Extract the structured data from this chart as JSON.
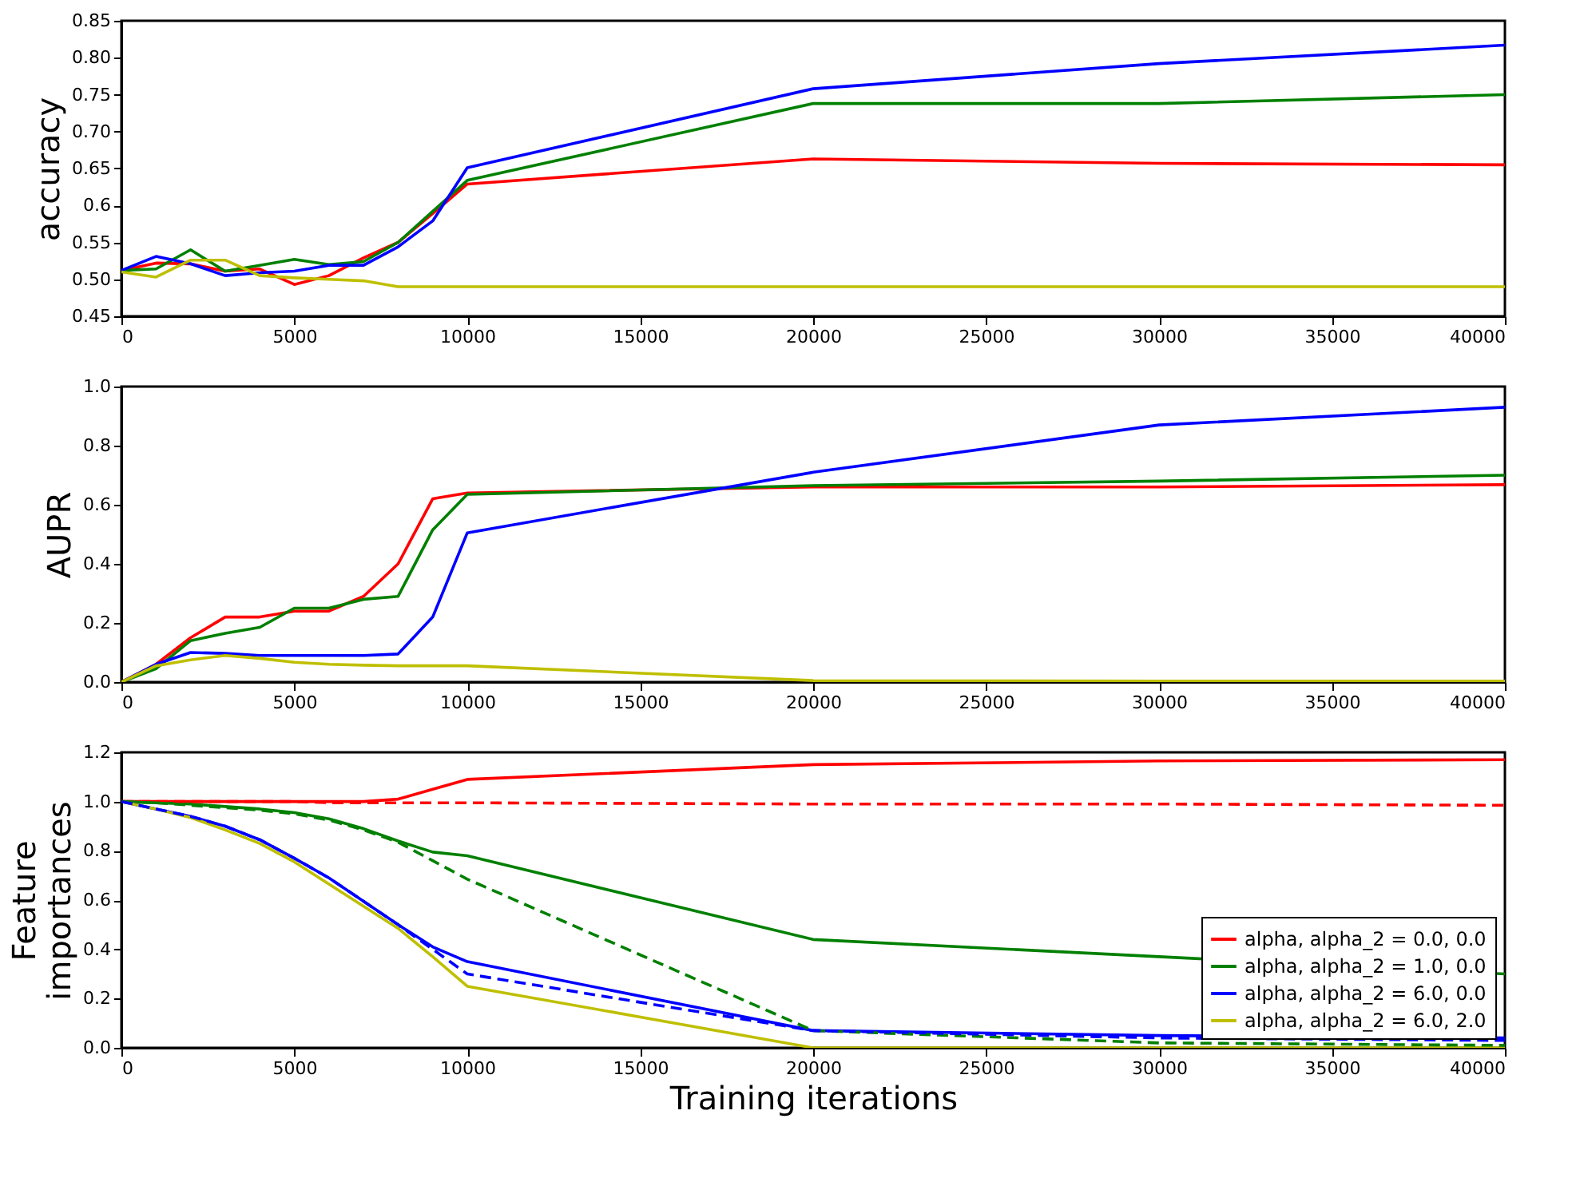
{
  "chart_data": [
    {
      "type": "line",
      "ylabel": "accuracy",
      "grid": false,
      "legend": false,
      "x": [
        0,
        1000,
        2000,
        3000,
        4000,
        5000,
        6000,
        7000,
        8000,
        9000,
        10000,
        20000,
        30000,
        40000
      ],
      "xlim": [
        0,
        40000
      ],
      "xticks": [
        0,
        5000,
        10000,
        15000,
        20000,
        25000,
        30000,
        35000,
        40000
      ],
      "ylim": [
        0.45,
        0.85
      ],
      "yticks": [
        0.45,
        {
          "value": 0.5,
          "label": "0.50"
        },
        0.55,
        0.6,
        0.65,
        {
          "value": 0.7,
          "label": "0.70"
        },
        0.75,
        {
          "value": 0.8,
          "label": "0.80"
        },
        0.85
      ],
      "series": [
        {
          "color": "#ff0000",
          "values": [
            0.512,
            0.522,
            0.521,
            0.511,
            0.514,
            0.493,
            0.505,
            0.529,
            0.55,
            0.589,
            0.629,
            0.663,
            0.657,
            0.655
          ]
        },
        {
          "color": "#008000",
          "values": [
            0.512,
            0.514,
            0.54,
            0.511,
            0.519,
            0.527,
            0.52,
            0.524,
            0.55,
            0.592,
            0.634,
            0.738,
            0.738,
            0.75
          ]
        },
        {
          "color": "#0000ff",
          "values": [
            0.512,
            0.531,
            0.521,
            0.505,
            0.509,
            0.511,
            0.519,
            0.519,
            0.544,
            0.579,
            0.651,
            0.758,
            0.792,
            0.817
          ]
        },
        {
          "color": "#bfbf00",
          "values": [
            0.51,
            0.503,
            0.526,
            0.526,
            0.505,
            0.502,
            0.5,
            0.498,
            0.49,
            0.49,
            0.49,
            0.49,
            0.49,
            0.49
          ]
        }
      ]
    },
    {
      "type": "line",
      "ylabel": "AUPR",
      "grid": false,
      "legend": false,
      "x": [
        0,
        1000,
        2000,
        3000,
        4000,
        5000,
        6000,
        7000,
        8000,
        9000,
        10000,
        20000,
        30000,
        40000
      ],
      "xlim": [
        0,
        40000
      ],
      "xticks": [
        0,
        5000,
        10000,
        15000,
        20000,
        25000,
        30000,
        35000,
        40000
      ],
      "ylim": [
        0.0,
        1.0
      ],
      "yticks": [
        {
          "value": 0,
          "label": "0.0"
        },
        0.2,
        0.4,
        0.6,
        0.8,
        {
          "value": 1,
          "label": "1.0"
        }
      ],
      "series": [
        {
          "color": "#ff0000",
          "values": [
            0.0,
            0.06,
            0.15,
            0.22,
            0.22,
            0.24,
            0.24,
            0.29,
            0.4,
            0.62,
            0.64,
            0.66,
            0.66,
            0.668
          ]
        },
        {
          "color": "#008000",
          "values": [
            0.0,
            0.045,
            0.14,
            0.165,
            0.185,
            0.25,
            0.25,
            0.28,
            0.29,
            0.515,
            0.635,
            0.665,
            0.68,
            0.7
          ]
        },
        {
          "color": "#0000ff",
          "values": [
            0.0,
            0.06,
            0.1,
            0.097,
            0.09,
            0.09,
            0.09,
            0.09,
            0.095,
            0.22,
            0.505,
            0.71,
            0.87,
            0.93
          ]
        },
        {
          "color": "#bfbf00",
          "values": [
            0.0,
            0.055,
            0.075,
            0.09,
            0.08,
            0.067,
            0.06,
            0.057,
            0.055,
            0.055,
            0.055,
            0.005,
            0.003,
            0.003
          ]
        }
      ]
    },
    {
      "type": "line",
      "ylabel": "Feature importances",
      "xlabel": "Training iterations",
      "grid": false,
      "legend": "bottom right",
      "x": [
        0,
        1000,
        2000,
        3000,
        4000,
        5000,
        6000,
        7000,
        8000,
        9000,
        10000,
        20000,
        30000,
        40000
      ],
      "xlim": [
        0,
        40000
      ],
      "xticks": [
        0,
        5000,
        10000,
        15000,
        20000,
        25000,
        30000,
        35000,
        40000
      ],
      "ylim": [
        0.0,
        1.2
      ],
      "yticks": [
        {
          "value": 0,
          "label": "0.0"
        },
        0.2,
        0.4,
        0.6,
        0.8,
        {
          "value": 1,
          "label": "1.0"
        },
        1.2
      ],
      "series": [
        {
          "name": "alpha, alpha_2 = 0.0, 0.0",
          "color": "#ff0000",
          "values": [
            1.0,
            1.0,
            1.0,
            1.0,
            1.0,
            1.0,
            1.0,
            1.0,
            1.01,
            1.05,
            1.09,
            1.15,
            1.165,
            1.17
          ]
        },
        {
          "name": "alpha, alpha_2 = 1.0, 0.0",
          "color": "#008000",
          "values": [
            1.0,
            0.995,
            0.99,
            0.98,
            0.97,
            0.955,
            0.93,
            0.89,
            0.84,
            0.795,
            0.78,
            0.44,
            0.37,
            0.3
          ]
        },
        {
          "name": "alpha, alpha_2 = 6.0, 0.0",
          "color": "#0000ff",
          "values": [
            1.0,
            0.97,
            0.94,
            0.9,
            0.845,
            0.77,
            0.69,
            0.595,
            0.5,
            0.41,
            0.35,
            0.07,
            0.05,
            0.04
          ]
        },
        {
          "name": "alpha, alpha_2 = 6.0, 2.0",
          "color": "#bfbf00",
          "values": [
            1.0,
            0.97,
            0.935,
            0.885,
            0.83,
            0.755,
            0.665,
            0.575,
            0.485,
            0.37,
            0.25,
            0.0,
            0.0,
            0.0
          ]
        },
        {
          "color": "#ff0000",
          "line_style": "dashed",
          "values": [
            1.0,
            1.0,
            1.0,
            1.0,
            1.0,
            1.0,
            0.995,
            0.995,
            0.995,
            0.995,
            0.995,
            0.99,
            0.99,
            0.985
          ]
        },
        {
          "color": "#008000",
          "line_style": "dashed",
          "values": [
            1.0,
            0.995,
            0.985,
            0.975,
            0.965,
            0.95,
            0.925,
            0.885,
            0.835,
            0.76,
            0.685,
            0.07,
            0.02,
            0.01
          ]
        },
        {
          "color": "#0000ff",
          "line_style": "dashed",
          "values": [
            1.0,
            0.97,
            0.94,
            0.9,
            0.845,
            0.77,
            0.69,
            0.595,
            0.5,
            0.4,
            0.3,
            0.07,
            0.04,
            0.03
          ]
        }
      ]
    }
  ]
}
